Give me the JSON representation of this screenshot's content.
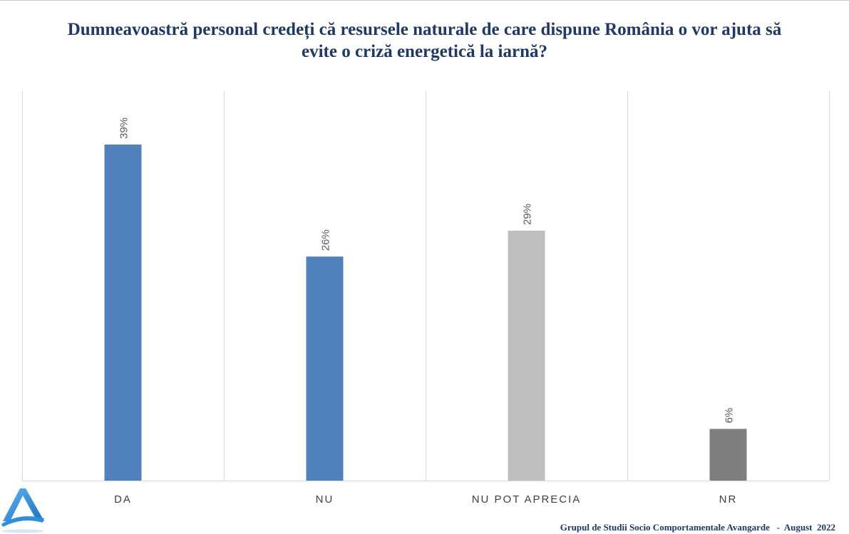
{
  "title_lines": [
    "Dumneavoastră personal credeți că resursele naturale de care dispune România o vor ajuta să",
    "evite o criză energetică la iarnă?"
  ],
  "footer": {
    "source": "Grupul de Studii Socio Comportamentale Avangarde",
    "separator": "-",
    "date": "August  2022"
  },
  "logo": {
    "icon": "avangarde-a-logo-icon",
    "color": "#2f8fd8"
  },
  "chart_data": {
    "type": "bar",
    "categories": [
      "DA",
      "NU",
      "NU POT APRECIA",
      "NR"
    ],
    "values": [
      39,
      26,
      29,
      6
    ],
    "value_labels": [
      "39%",
      "26%",
      "29%",
      "6%"
    ],
    "colors": [
      "#4f81bd",
      "#4f81bd",
      "#bfbfbf",
      "#7f7f7f"
    ],
    "ylim": [
      0,
      45
    ],
    "grid": "vertical separators",
    "legend": "none",
    "label_color": "#595959",
    "gridline_color": "#d9d9d9"
  }
}
